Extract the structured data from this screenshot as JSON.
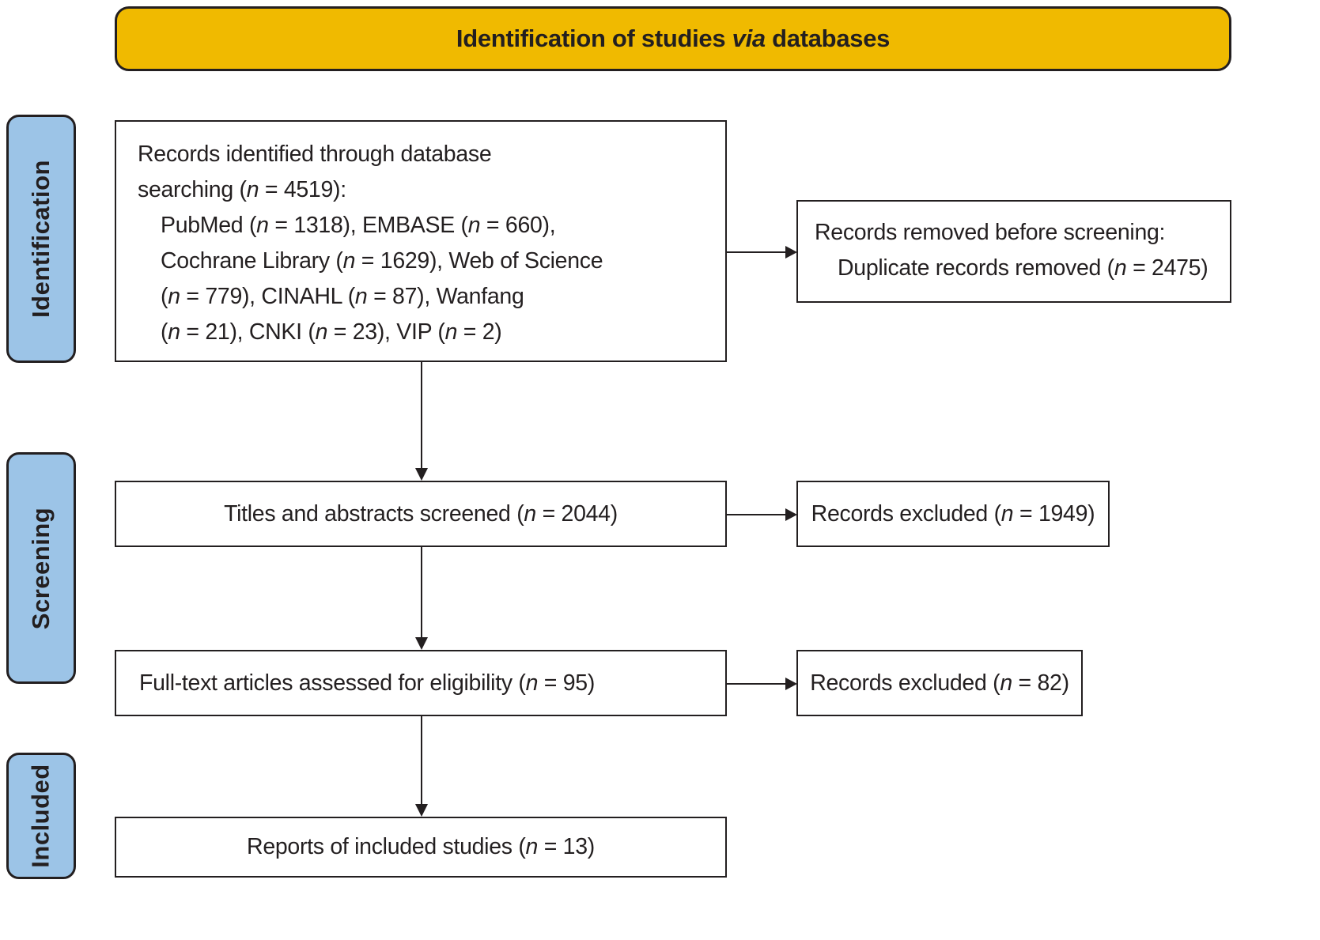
{
  "colors": {
    "header_bg": "#F0BA00",
    "stage_bg": "#9CC4E7",
    "border": "#231F20",
    "text": "#231F20",
    "box_bg": "#FFFFFF",
    "page_bg": "#FFFFFF"
  },
  "header": {
    "prefix": "Identification of studies ",
    "italic": "via",
    "suffix": " databases"
  },
  "stages": {
    "identification": "Identification",
    "screening": "Screening",
    "included": "Included"
  },
  "boxes": {
    "identified": {
      "line1": "Records identified through database",
      "line2": "searching (n = 4519):",
      "line3": "PubMed (n = 1318), EMBASE (n = 660),",
      "line4": "Cochrane Library (n = 1629), Web of Science",
      "line5": "(n = 779), CINAHL (n = 87), Wanfang",
      "line6": "(n = 21), CNKI (n = 23), VIP (n = 2)"
    },
    "removed_before_screening": {
      "line1": "Records removed before screening:",
      "line2": "Duplicate records removed (n = 2475)"
    },
    "screened": "Titles and abstracts screened (n = 2044)",
    "excluded_screening": "Records excluded (n = 1949)",
    "fulltext": "Full-text articles assessed for eligibility (n = 95)",
    "excluded_fulltext": "Records excluded (n = 82)",
    "included": "Reports of included studies (n = 13)"
  }
}
